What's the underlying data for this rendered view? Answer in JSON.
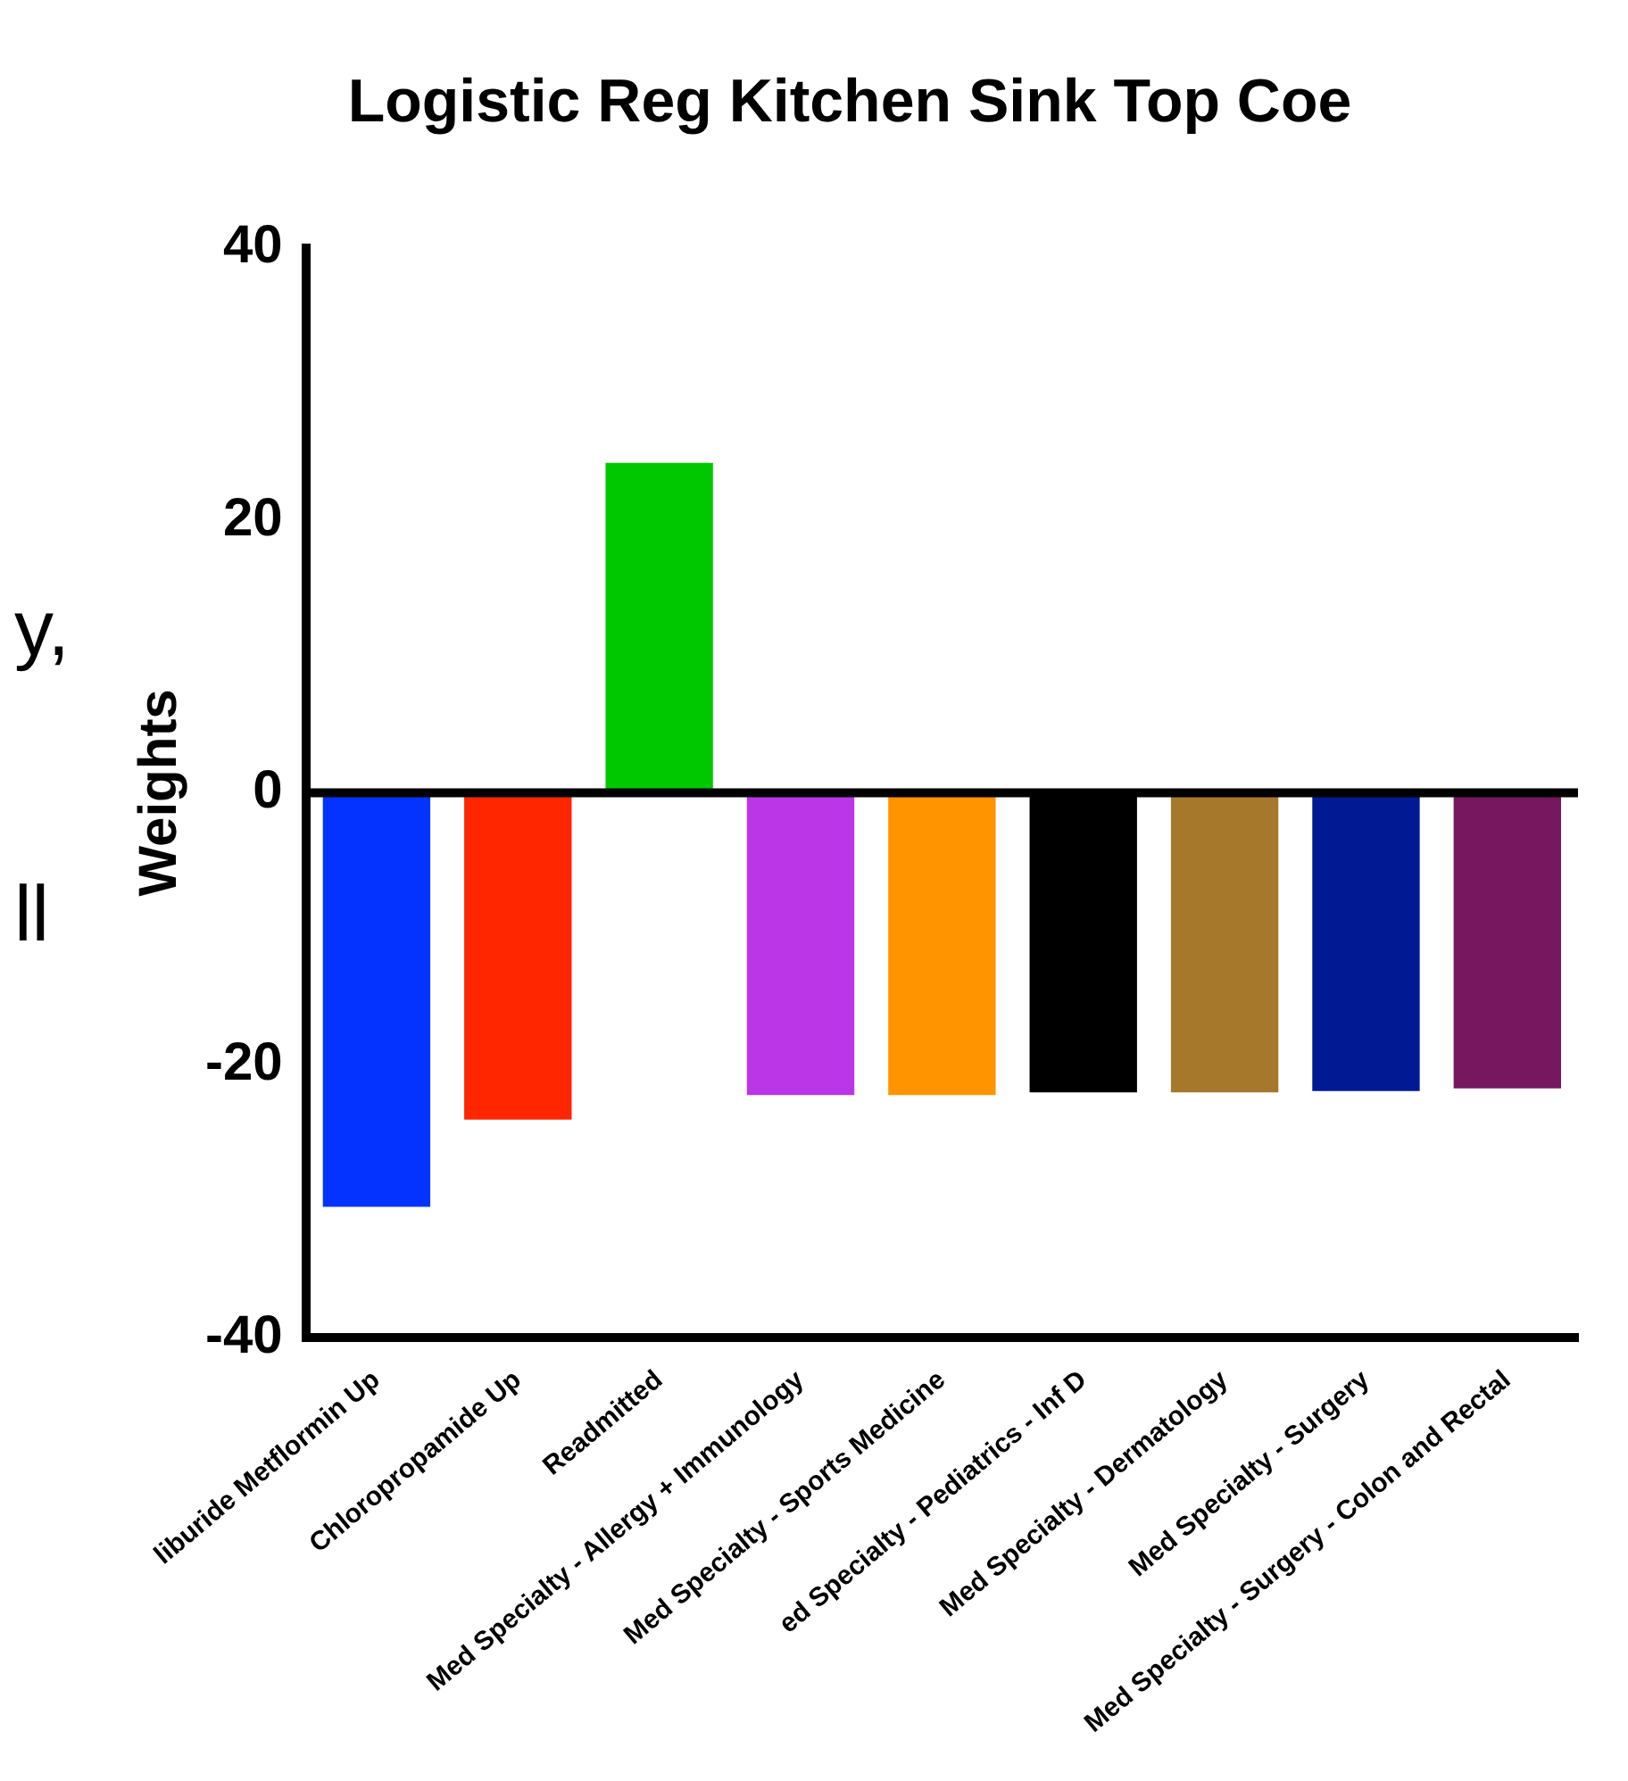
{
  "chart_data": {
    "type": "bar",
    "title": "Logistic Reg Kitchen Sink Top Coe",
    "ylabel": "Weights",
    "categories": [
      "liburide Metflormin Up",
      "Chloropropamide Up",
      "Readmitted",
      "Med Specialty - Allergy + Immunology",
      "Med Specialty - Sports Medicine",
      "ed Specialty - Pediatrics - Inf D",
      "Med Specialty - Dermatology",
      "Med Specialty - Surgery",
      "Med Specialty - Surgery - Colon and Rectal"
    ],
    "values": [
      -30.4,
      -24,
      24.2,
      -22.2,
      -22.2,
      -22,
      -22,
      -21.9,
      -21.7
    ],
    "colors": [
      "#0433ff",
      "#ff2600",
      "#00c800",
      "#bb36e6",
      "#ff9300",
      "#000000",
      "#a5782b",
      "#011993",
      "#76175f"
    ],
    "ylim": [
      -40,
      40
    ],
    "yticks": [
      -40,
      -20,
      0,
      20,
      40
    ],
    "legend": false,
    "annotations": [
      "y,",
      "ll"
    ]
  }
}
